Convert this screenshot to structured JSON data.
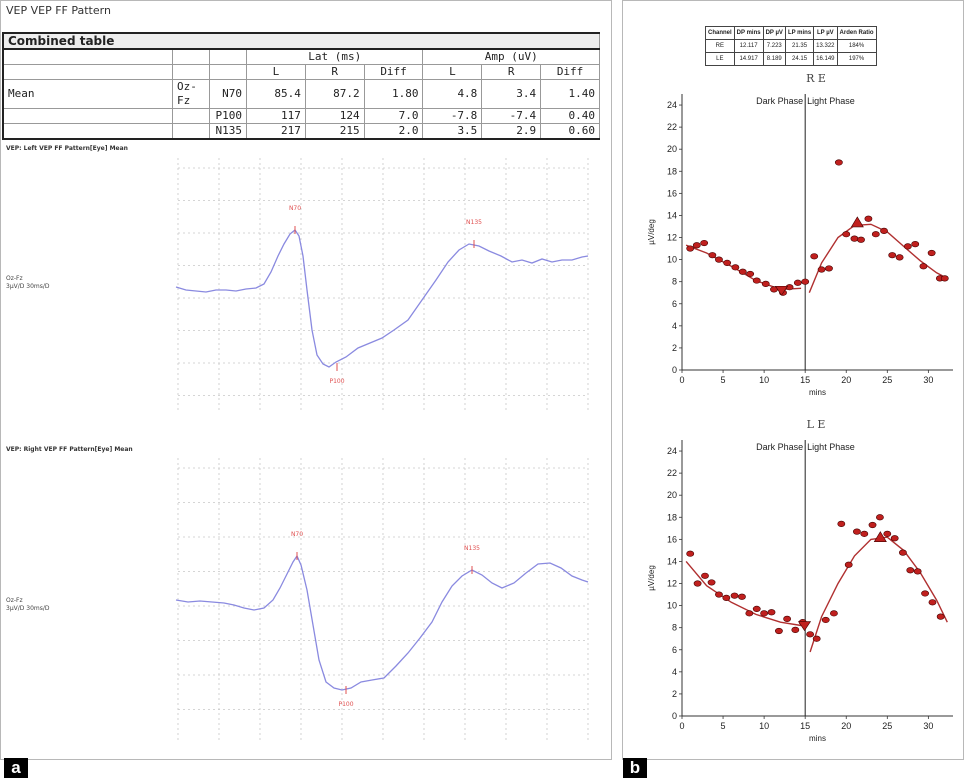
{
  "panel_a": {
    "label": "a",
    "title": "VEP VEP FF Pattern",
    "table": {
      "title": "Combined table",
      "group_headers": [
        "Lat (ms)",
        "Amp (uV)"
      ],
      "sub_headers": [
        "L",
        "R",
        "Diff",
        "L",
        "R",
        "Diff"
      ],
      "row_label": "Mean",
      "channel": "Oz-Fz",
      "rows": [
        {
          "peak": "N70",
          "values": [
            "85.4",
            "87.2",
            "1.80",
            "4.8",
            "3.4",
            "1.40"
          ]
        },
        {
          "peak": "P100",
          "values": [
            "117",
            "124",
            "7.0",
            "-7.8",
            "-7.4",
            "0.40"
          ]
        },
        {
          "peak": "N135",
          "values": [
            "217",
            "215",
            "2.0",
            "3.5",
            "2.9",
            "0.60"
          ]
        }
      ]
    },
    "traces": [
      {
        "title": "VEP: Left VEP FF Pattern[Eye] Mean",
        "channel": "Oz-Fz",
        "scale": "3µV/D 30ms/D",
        "markers": {
          "N70": "N70",
          "P100": "P100",
          "N135": "N135"
        }
      },
      {
        "title": "VEP: Right VEP FF Pattern[Eye] Mean",
        "channel": "Oz-Fz",
        "scale": "3µV/D 30ms/D",
        "markers": {
          "N70": "N70",
          "P100": "P100",
          "N135": "N135"
        }
      }
    ],
    "trace_color": "#8a8ae0",
    "marker_color": "#e05050"
  },
  "panel_b": {
    "label": "b",
    "arden_table": {
      "headers": [
        "Channel",
        "DP mins",
        "DP µV",
        "LP mins",
        "LP µV",
        "Arden Ratio"
      ],
      "rows": [
        [
          "RE",
          "12.117",
          "7.223",
          "21.35",
          "13.322",
          "184%"
        ],
        [
          "LE",
          "14.917",
          "8.189",
          "24.15",
          "16.149",
          "197%"
        ]
      ]
    },
    "point_color": "#c0201e",
    "line_color": "#b03030"
  },
  "chart_data": [
    {
      "type": "scatter",
      "title": "R E",
      "xlabel": "mins",
      "ylabel": "µV/deg",
      "xlim": [
        0,
        33
      ],
      "ylim": [
        0,
        25
      ],
      "xticks": [
        0,
        5,
        10,
        15,
        20,
        25,
        30
      ],
      "yticks": [
        0,
        2,
        4,
        6,
        8,
        10,
        12,
        14,
        16,
        18,
        20,
        22,
        24
      ],
      "phase_divider_x": 15,
      "phase_labels": [
        "Dark Phase",
        "Light Phase"
      ],
      "grid": false,
      "points": {
        "x": [
          1,
          1.8,
          2.7,
          3.7,
          4.5,
          5.5,
          6.5,
          7.4,
          8.3,
          9.1,
          10.2,
          11.2,
          12.3,
          13.1,
          14.1,
          15.0,
          16.1,
          17.0,
          17.9,
          19.1,
          20.0,
          21.0,
          21.8,
          22.7,
          23.6,
          24.6,
          25.6,
          26.5,
          27.5,
          28.4,
          29.4,
          30.4,
          31.4,
          32.0
        ],
        "y": [
          11.0,
          11.3,
          11.5,
          10.4,
          10.0,
          9.7,
          9.3,
          8.9,
          8.7,
          8.1,
          7.8,
          7.3,
          7.0,
          7.5,
          7.9,
          8.0,
          10.3,
          9.1,
          9.2,
          18.8,
          12.3,
          11.9,
          11.8,
          13.7,
          12.3,
          12.6,
          10.4,
          10.2,
          11.2,
          11.4,
          9.4,
          10.6,
          8.3,
          8.3
        ]
      },
      "fit_dark": {
        "x": [
          0.5,
          3,
          6,
          9,
          12,
          14.5
        ],
        "y": [
          11.3,
          10.6,
          9.4,
          8.1,
          7.3,
          7.4
        ]
      },
      "fit_light": {
        "x": [
          15.5,
          17,
          19,
          21,
          23,
          25,
          27,
          29,
          31,
          32.3
        ],
        "y": [
          7.0,
          9.7,
          12.0,
          13.1,
          13.2,
          12.5,
          11.2,
          9.9,
          8.8,
          8.3
        ]
      },
      "dark_trough": {
        "x": 12.117,
        "y": 7.223
      },
      "light_peak": {
        "x": 21.35,
        "y": 13.322
      }
    },
    {
      "type": "scatter",
      "title": "L E",
      "xlabel": "mins",
      "ylabel": "µV/deg",
      "xlim": [
        0,
        33
      ],
      "ylim": [
        0,
        25
      ],
      "xticks": [
        0,
        5,
        10,
        15,
        20,
        25,
        30
      ],
      "yticks": [
        0,
        2,
        4,
        6,
        8,
        10,
        12,
        14,
        16,
        18,
        20,
        22,
        24
      ],
      "phase_divider_x": 15,
      "phase_labels": [
        "Dark Phase",
        "Light Phase"
      ],
      "grid": false,
      "points": {
        "x": [
          1,
          1.9,
          2.8,
          3.6,
          4.5,
          5.4,
          6.4,
          7.3,
          8.2,
          9.1,
          10.0,
          10.9,
          11.8,
          12.8,
          13.8,
          14.7,
          15.6,
          16.4,
          17.5,
          18.5,
          19.4,
          20.3,
          21.3,
          22.2,
          23.2,
          24.1,
          25.0,
          25.9,
          26.9,
          27.8,
          28.7,
          29.6,
          30.5,
          31.5
        ],
        "y": [
          14.7,
          12.0,
          12.7,
          12.1,
          11.0,
          10.7,
          10.9,
          10.8,
          9.3,
          9.7,
          9.3,
          9.4,
          7.7,
          8.8,
          7.8,
          8.5,
          7.4,
          7.0,
          8.7,
          9.3,
          17.4,
          13.7,
          16.7,
          16.5,
          17.3,
          18.0,
          16.5,
          16.1,
          14.8,
          13.2,
          13.1,
          11.1,
          10.3,
          9.0
        ]
      },
      "fit_dark": {
        "x": [
          0.5,
          3,
          6,
          9,
          12,
          14.5
        ],
        "y": [
          14.0,
          11.8,
          10.3,
          9.2,
          8.5,
          8.2
        ]
      },
      "fit_light": {
        "x": [
          15.6,
          17,
          19,
          21,
          23,
          25,
          27,
          29,
          31,
          32.3
        ],
        "y": [
          5.8,
          9.0,
          12.0,
          14.5,
          16.0,
          16.2,
          15.0,
          13.0,
          10.5,
          8.5
        ]
      },
      "dark_trough": {
        "x": 14.917,
        "y": 8.189
      },
      "light_peak": {
        "x": 24.15,
        "y": 16.149
      }
    }
  ]
}
